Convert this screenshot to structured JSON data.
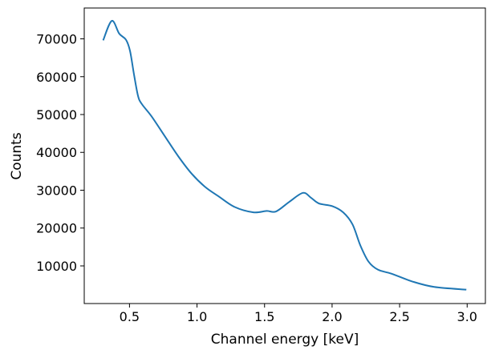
{
  "chart_data": {
    "type": "line",
    "title": "",
    "xlabel": "Channel energy [keV]",
    "ylabel": "Counts",
    "xlim": [
      0.165,
      3.135
    ],
    "ylim": [
      50,
      78150
    ],
    "grid": false,
    "xticks": [
      0.5,
      1.0,
      1.5,
      2.0,
      2.5,
      3.0
    ],
    "xtick_labels": [
      "0.5",
      "1.0",
      "1.5",
      "2.0",
      "2.5",
      "3.0"
    ],
    "yticks": [
      10000,
      20000,
      30000,
      40000,
      50000,
      60000,
      70000
    ],
    "ytick_labels": [
      "10000",
      "20000",
      "30000",
      "40000",
      "50000",
      "60000",
      "70000"
    ],
    "series": [
      {
        "color": "#1f77b4",
        "x": [
          0.305,
          0.369,
          0.424,
          0.474,
          0.504,
          0.534,
          0.564,
          0.593,
          0.663,
          0.762,
          0.861,
          0.96,
          1.06,
          1.159,
          1.278,
          1.417,
          1.516,
          1.585,
          1.685,
          1.784,
          1.843,
          1.903,
          2.002,
          2.082,
          2.151,
          2.21,
          2.27,
          2.339,
          2.439,
          2.597,
          2.756,
          2.994
        ],
        "y": [
          69600,
          74760,
          71380,
          69770,
          66800,
          60460,
          54820,
          52700,
          49540,
          44250,
          38970,
          34380,
          30870,
          28390,
          25580,
          24160,
          24520,
          24380,
          26980,
          29300,
          28030,
          26490,
          25790,
          24160,
          20990,
          15350,
          11120,
          9010,
          7950,
          5840,
          4440,
          3720
        ]
      }
    ]
  }
}
